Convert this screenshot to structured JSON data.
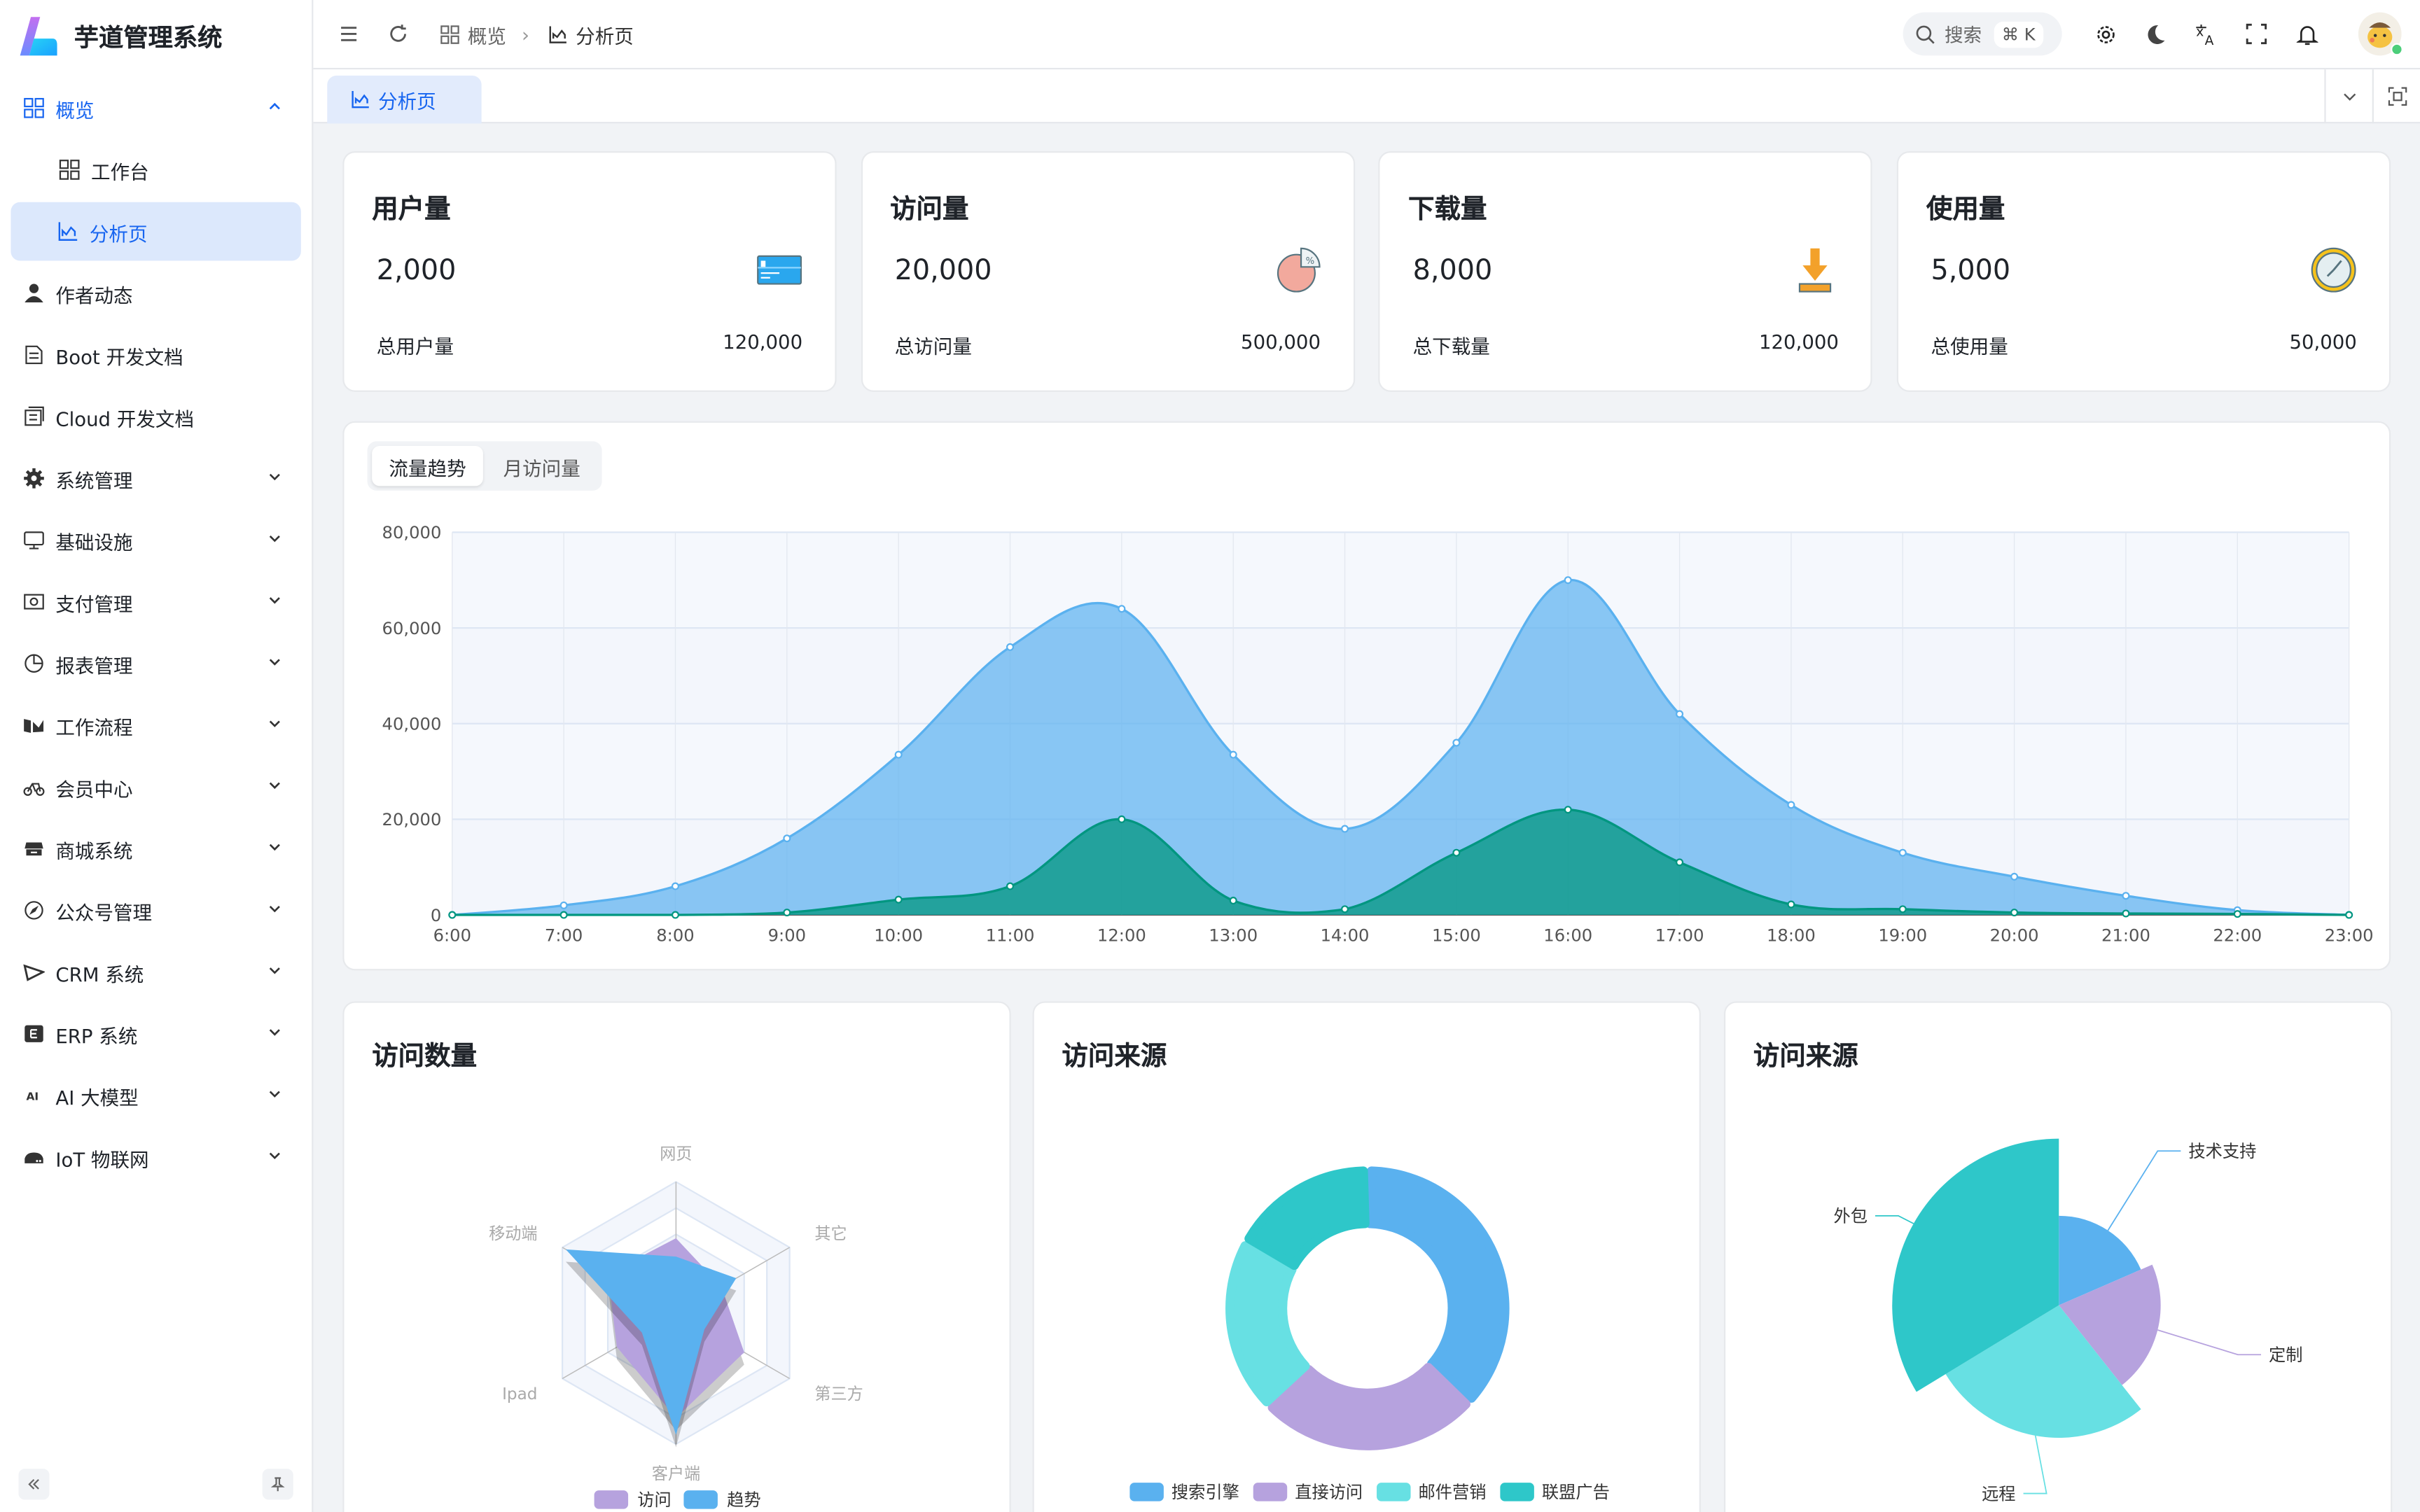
{
  "app": {
    "title": "芋道管理系统"
  },
  "sidebar": {
    "items": [
      {
        "label": "概览",
        "icon": "grid-icon",
        "expanded": true
      },
      {
        "label": "工作台",
        "icon": "grid-icon",
        "sub": true
      },
      {
        "label": "分析页",
        "icon": "area-chart-icon",
        "sub": true,
        "selected": true
      },
      {
        "label": "作者动态",
        "icon": "user-icon"
      },
      {
        "label": "Boot 开发文档",
        "icon": "document-icon"
      },
      {
        "label": "Cloud 开发文档",
        "icon": "documents-icon"
      },
      {
        "label": "系统管理",
        "icon": "gear-icon",
        "chevron": true
      },
      {
        "label": "基础设施",
        "icon": "monitor-icon",
        "chevron": true
      },
      {
        "label": "支付管理",
        "icon": "money-icon",
        "chevron": true
      },
      {
        "label": "报表管理",
        "icon": "pie-icon",
        "chevron": true
      },
      {
        "label": "工作流程",
        "icon": "workflow-icon",
        "chevron": true
      },
      {
        "label": "会员中心",
        "icon": "bicycle-icon",
        "chevron": true
      },
      {
        "label": "商城系统",
        "icon": "shop-icon",
        "chevron": true
      },
      {
        "label": "公众号管理",
        "icon": "compass-icon",
        "chevron": true
      },
      {
        "label": "CRM 系统",
        "icon": "triangle-icon",
        "chevron": true
      },
      {
        "label": "ERP 系统",
        "icon": "erp-icon",
        "chevron": true
      },
      {
        "label": "AI 大模型",
        "icon": "ai-icon",
        "chevron": true
      },
      {
        "label": "IoT 物联网",
        "icon": "router-icon",
        "chevron": true
      }
    ]
  },
  "header": {
    "breadcrumb": [
      "概览",
      "分析页"
    ],
    "search_label": "搜索",
    "search_shortcut": "⌘ K"
  },
  "tabs": [
    {
      "label": "分析页",
      "active": true
    }
  ],
  "stats": [
    {
      "title": "用户量",
      "value": "2,000",
      "total_label": "总用户量",
      "total": "120,000",
      "icon": "card-icon"
    },
    {
      "title": "访问量",
      "value": "20,000",
      "total_label": "总访问量",
      "total": "500,000",
      "icon": "pie-chart-icon"
    },
    {
      "title": "下载量",
      "value": "8,000",
      "total_label": "总下载量",
      "total": "120,000",
      "icon": "download-icon"
    },
    {
      "title": "使用量",
      "value": "5,000",
      "total_label": "总使用量",
      "total": "50,000",
      "icon": "clock-icon"
    }
  ],
  "trend": {
    "tabs": [
      "流量趋势",
      "月访问量"
    ],
    "active_tab": 0
  },
  "chart_data": [
    {
      "type": "area",
      "x": [
        "6:00",
        "7:00",
        "8:00",
        "9:00",
        "10:00",
        "11:00",
        "12:00",
        "13:00",
        "14:00",
        "15:00",
        "16:00",
        "17:00",
        "18:00",
        "19:00",
        "20:00",
        "21:00",
        "22:00",
        "23:00"
      ],
      "ylim": [
        0,
        80000
      ],
      "yticks": [
        "0",
        "20,000",
        "40,000",
        "60,000",
        "80,000"
      ],
      "grid": true,
      "series": [
        {
          "color": "#5ab1ef",
          "values": [
            0,
            2000,
            6000,
            16000,
            33500,
            56000,
            64000,
            33500,
            18000,
            36000,
            70000,
            42000,
            23000,
            13000,
            8000,
            4000,
            1000,
            0
          ]
        },
        {
          "color": "#019680",
          "values": [
            0,
            0,
            0,
            500,
            3200,
            6000,
            20000,
            3000,
            1200,
            13000,
            22000,
            11000,
            2200,
            1200,
            500,
            300,
            200,
            0
          ]
        }
      ]
    },
    {
      "type": "radar",
      "title": "访问数量",
      "indicators": [
        "网页",
        "移动端",
        "Ipad",
        "客户端",
        "第三方",
        "其它"
      ],
      "max": 100,
      "series": [
        {
          "name": "访问",
          "color": "#b6a2de",
          "values": [
            57,
            60,
            52,
            80,
            60,
            40
          ]
        },
        {
          "name": "趋势",
          "color": "#5ab1ef",
          "values": [
            43,
            97,
            30,
            93,
            25,
            53
          ]
        }
      ]
    },
    {
      "type": "pie",
      "title": "访问来源",
      "donut": true,
      "slices": [
        {
          "name": "搜索引擎",
          "value": 1048,
          "color": "#5ab1ef"
        },
        {
          "name": "直接访问",
          "value": 735,
          "color": "#b6a2de"
        },
        {
          "name": "邮件营销",
          "value": 580,
          "color": "#67e0e3"
        },
        {
          "name": "联盟广告",
          "value": 484,
          "color": "#2ec7c9"
        }
      ]
    },
    {
      "type": "pie",
      "title": "访问来源",
      "rose": "radius",
      "slices": [
        {
          "name": "技术支持",
          "value": 274,
          "color": "#5ab1ef"
        },
        {
          "name": "定制",
          "value": 310,
          "color": "#b6a2de"
        },
        {
          "name": "远程",
          "value": 400,
          "color": "#67e0e3"
        },
        {
          "name": "外包",
          "value": 500,
          "color": "#2ec7c9"
        }
      ]
    }
  ]
}
